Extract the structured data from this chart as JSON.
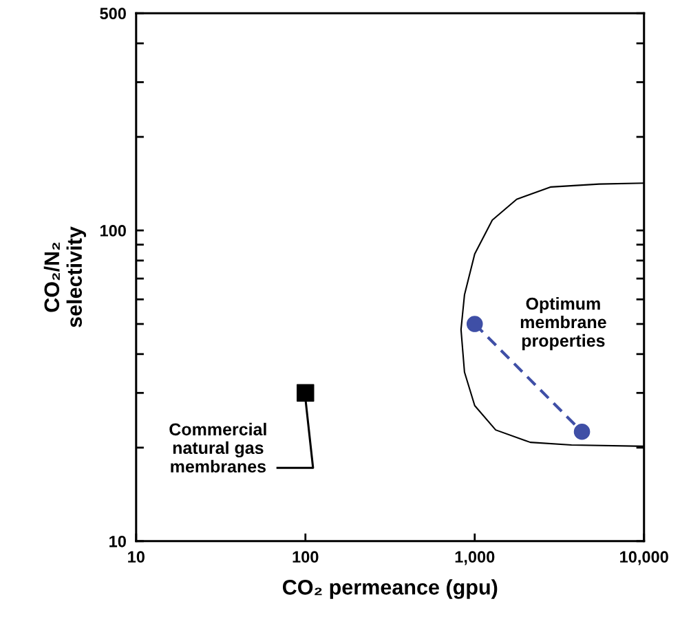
{
  "chart_data": {
    "type": "scatter",
    "xlabel": "CO₂ permeance (gpu)",
    "ylabel": "CO₂/N₂\nselectivity",
    "log": "xy",
    "xlim": [
      10,
      10000
    ],
    "ylim": [
      10,
      500
    ],
    "xticks": [
      10,
      100,
      {
        "value": 1000,
        "label": "1,000"
      },
      {
        "value": 10000,
        "label": "10,000"
      }
    ],
    "yticks": [
      10,
      {
        "value": 20,
        "label": null
      },
      {
        "value": 30,
        "label": null
      },
      {
        "value": 40,
        "label": null
      },
      {
        "value": 50,
        "label": null
      },
      {
        "value": 60,
        "label": null
      },
      {
        "value": 70,
        "label": null
      },
      {
        "value": 80,
        "label": null
      },
      {
        "value": 90,
        "label": null
      },
      100,
      {
        "value": 200,
        "label": null
      },
      {
        "value": 300,
        "label": null
      },
      {
        "value": 400,
        "label": null
      },
      500
    ],
    "grid": false,
    "series": [
      {
        "type": "line",
        "color": "#000000",
        "marker": "none",
        "line_style": "solid",
        "x": [
          10000,
          5430,
          2820,
          1770,
          1270,
          1000,
          870,
          830,
          870,
          1000,
          1330,
          2130,
          3730,
          10000
        ],
        "values": [
          142,
          141,
          138,
          126,
          108,
          84,
          62,
          48,
          35,
          27.3,
          22.8,
          20.8,
          20.4,
          20.2
        ]
      },
      {
        "color": "#000000",
        "marker": "square",
        "x": [
          100
        ],
        "values": [
          30
        ]
      },
      {
        "type": "line",
        "color": "#3f4fa6",
        "marker": "circle",
        "line_style": "dashed",
        "x": [
          1000,
          4300
        ],
        "values": [
          50,
          22.5
        ]
      }
    ],
    "annotations": [
      {
        "text": "Commercial\nnatural gas\nmembranes",
        "x": 100,
        "y": 30
      },
      "Optimum\nmembrane\nproperties"
    ]
  }
}
